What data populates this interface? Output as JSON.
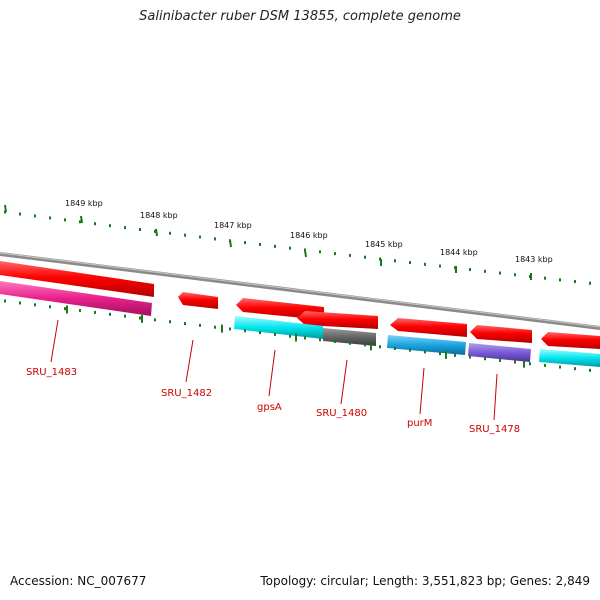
{
  "title": "Salinibacter ruber DSM 13855, complete genome",
  "accession_text": "Accession: NC_007677",
  "topology_text": "Topology: circular; Length: 3,551,823 bp; Genes: 2,849",
  "colors": {
    "backbone": "#888888",
    "forward_gene": "#ff0000",
    "gc_ticks": "#1a7a1a",
    "label": "#cc0000",
    "magenta": "#e8208a",
    "cyan": "#00e5ee",
    "gray": "#666666",
    "blue": "#1aa5e0",
    "purple": "#7b5bd6"
  },
  "scale_ticks": [
    {
      "label": "1849 kbp"
    },
    {
      "label": "1848 kbp"
    },
    {
      "label": "1847 kbp"
    },
    {
      "label": "1846 kbp"
    },
    {
      "label": "1845 kbp"
    },
    {
      "label": "1844 kbp"
    },
    {
      "label": "1843 kbp"
    }
  ],
  "gene_labels": [
    {
      "label": "SRU_1483"
    },
    {
      "label": "SRU_1482"
    },
    {
      "label": "gpsA"
    },
    {
      "label": "SRU_1480"
    },
    {
      "label": "purM"
    },
    {
      "label": "SRU_1478"
    }
  ]
}
